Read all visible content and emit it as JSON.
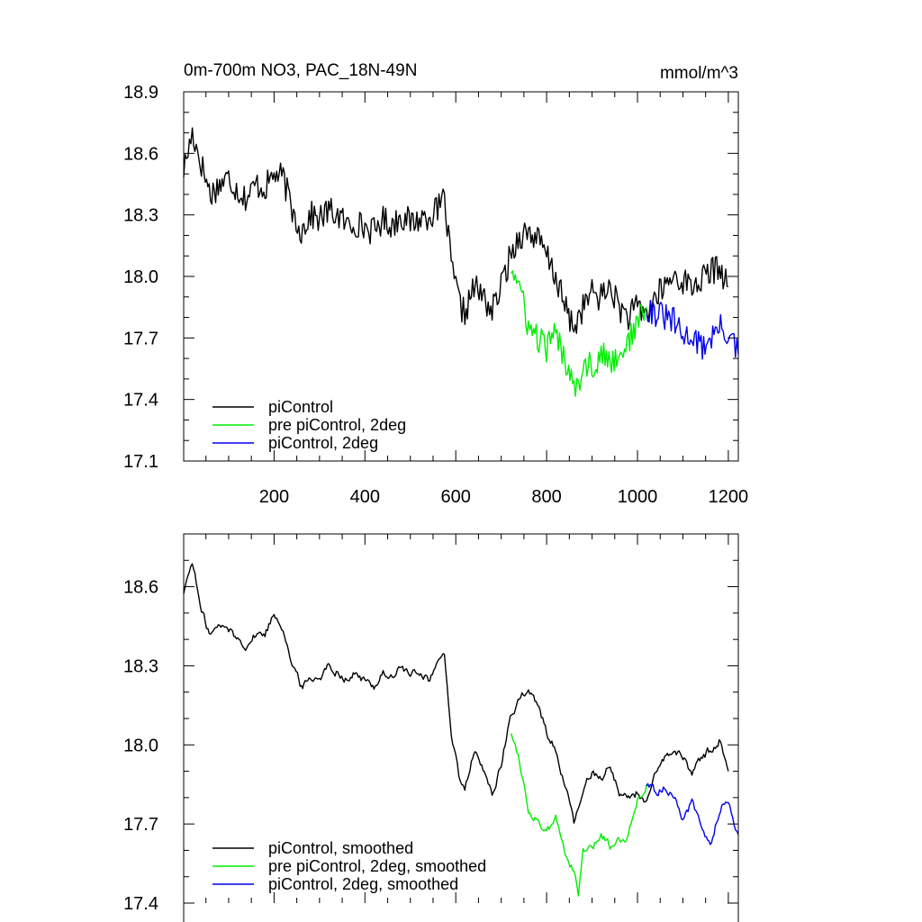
{
  "chart_data": [
    {
      "type": "line",
      "title": "0m-700m NO3, PAC_18N-49N",
      "units": "mmol/m^3",
      "xlim": [
        1,
        1222
      ],
      "ylim": [
        17.1,
        18.9
      ],
      "x_ticks": [
        200,
        400,
        600,
        800,
        1000,
        1200
      ],
      "x_tick_labels": [
        "200",
        "400",
        "600",
        "800",
        "1000",
        "1200"
      ],
      "y_ticks": [
        17.1,
        17.4,
        17.7,
        18.0,
        18.3,
        18.6,
        18.9
      ],
      "y_tick_labels": [
        "17.1",
        "17.4",
        "17.7",
        "18.0",
        "18.3",
        "18.6",
        "18.9"
      ],
      "legend_position": "bottom-left",
      "series": [
        {
          "name": "piControl",
          "color": "#000000",
          "x": [
            1,
            20,
            40,
            60,
            80,
            100,
            120,
            140,
            160,
            180,
            200,
            220,
            240,
            260,
            280,
            300,
            320,
            340,
            360,
            380,
            400,
            420,
            440,
            460,
            480,
            500,
            520,
            540,
            560,
            575,
            590,
            600,
            610,
            620,
            640,
            660,
            680,
            700,
            720,
            740,
            760,
            780,
            800,
            820,
            840,
            860,
            880,
            900,
            920,
            940,
            960,
            980,
            1000,
            1020,
            1040,
            1060,
            1080,
            1100,
            1120,
            1140,
            1160,
            1180,
            1200
          ],
          "y": [
            18.52,
            18.7,
            18.55,
            18.4,
            18.45,
            18.48,
            18.42,
            18.38,
            18.45,
            18.43,
            18.5,
            18.48,
            18.32,
            18.22,
            18.3,
            18.28,
            18.32,
            18.3,
            18.25,
            18.26,
            18.24,
            18.22,
            18.28,
            18.25,
            18.3,
            18.26,
            18.28,
            18.3,
            18.32,
            18.38,
            18.05,
            17.95,
            17.85,
            17.82,
            17.95,
            17.9,
            17.83,
            17.95,
            18.1,
            18.2,
            18.22,
            18.18,
            18.1,
            18.0,
            17.85,
            17.75,
            17.85,
            17.92,
            17.9,
            17.95,
            17.85,
            17.8,
            17.85,
            17.82,
            17.9,
            17.95,
            18.0,
            17.98,
            17.95,
            17.98,
            18.02,
            18.05,
            17.95
          ]
        },
        {
          "name": "pre piControl, 2deg",
          "color": "#00ee00",
          "x": [
            722,
            740,
            760,
            780,
            800,
            820,
            840,
            860,
            870,
            880,
            900,
            920,
            940,
            960,
            980,
            1000,
            1020
          ],
          "y": [
            18.05,
            17.95,
            17.75,
            17.7,
            17.65,
            17.72,
            17.6,
            17.5,
            17.45,
            17.6,
            17.55,
            17.62,
            17.58,
            17.62,
            17.68,
            17.78,
            17.85
          ]
        },
        {
          "name": "piControl, 2deg",
          "color": "#0000ee",
          "x": [
            1020,
            1040,
            1060,
            1080,
            1100,
            1120,
            1140,
            1160,
            1180,
            1200,
            1222
          ],
          "y": [
            17.85,
            17.82,
            17.8,
            17.78,
            17.7,
            17.72,
            17.65,
            17.7,
            17.75,
            17.72,
            17.62
          ]
        }
      ]
    },
    {
      "type": "line",
      "xlim": [
        1,
        1222
      ],
      "ylim": [
        17.4,
        18.8
      ],
      "y_ticks": [
        17.4,
        17.7,
        18.0,
        18.3,
        18.6
      ],
      "y_tick_labels": [
        "17.4",
        "17.7",
        "18.0",
        "18.3",
        "18.6"
      ],
      "legend_position": "bottom-left",
      "series": [
        {
          "name": "piControl, smoothed",
          "color": "#000000",
          "x": [
            1,
            20,
            40,
            60,
            80,
            100,
            120,
            140,
            160,
            180,
            200,
            220,
            240,
            260,
            280,
            300,
            320,
            340,
            360,
            380,
            400,
            420,
            440,
            460,
            480,
            500,
            520,
            540,
            560,
            575,
            590,
            600,
            610,
            620,
            640,
            660,
            680,
            700,
            720,
            740,
            760,
            780,
            800,
            820,
            840,
            860,
            880,
            900,
            920,
            940,
            960,
            980,
            1000,
            1020,
            1040,
            1060,
            1080,
            1100,
            1120,
            1140,
            1160,
            1180,
            1200
          ],
          "y": [
            18.58,
            18.7,
            18.5,
            18.42,
            18.45,
            18.44,
            18.4,
            18.38,
            18.42,
            18.42,
            18.5,
            18.45,
            18.3,
            18.22,
            18.25,
            18.26,
            18.3,
            18.28,
            18.25,
            18.27,
            18.24,
            18.22,
            18.28,
            18.25,
            18.3,
            18.26,
            18.28,
            18.25,
            18.3,
            18.35,
            18.05,
            17.95,
            17.85,
            17.82,
            17.98,
            17.9,
            17.82,
            17.92,
            18.1,
            18.18,
            18.2,
            18.15,
            18.05,
            17.98,
            17.85,
            17.7,
            17.82,
            17.9,
            17.88,
            17.92,
            17.82,
            17.8,
            17.82,
            17.78,
            17.88,
            17.95,
            17.98,
            17.95,
            17.9,
            17.95,
            17.98,
            18.02,
            17.9
          ]
        },
        {
          "name": "pre piControl, 2deg, smoothed",
          "color": "#00ee00",
          "x": [
            722,
            740,
            760,
            780,
            800,
            820,
            840,
            860,
            870,
            880,
            900,
            920,
            940,
            960,
            980,
            1000,
            1020
          ],
          "y": [
            18.05,
            17.95,
            17.75,
            17.72,
            17.66,
            17.72,
            17.6,
            17.52,
            17.42,
            17.6,
            17.6,
            17.66,
            17.62,
            17.64,
            17.66,
            17.8,
            17.85
          ]
        },
        {
          "name": "piControl, 2deg, smoothed",
          "color": "#0000ee",
          "x": [
            1020,
            1040,
            1060,
            1080,
            1100,
            1120,
            1140,
            1160,
            1180,
            1200,
            1222
          ],
          "y": [
            17.85,
            17.82,
            17.84,
            17.8,
            17.72,
            17.78,
            17.7,
            17.62,
            17.75,
            17.8,
            17.66
          ]
        }
      ]
    }
  ]
}
